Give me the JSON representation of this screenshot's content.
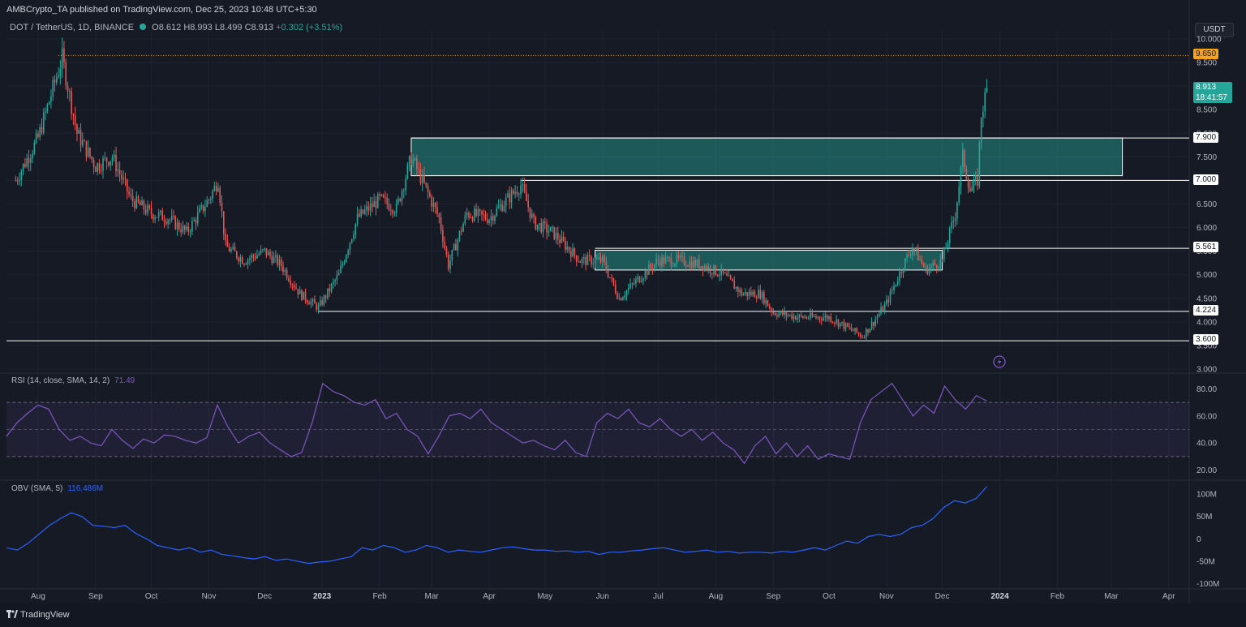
{
  "header": {
    "published_text": "AMBCrypto_TA published on TradingView.com, Dec 25, 2023 10:48 UTC+5:30"
  },
  "legend": {
    "symbol": "DOT / TetherUS, 1D, BINANCE",
    "open": "O8.612",
    "high": "H8.993",
    "low": "L8.499",
    "close": "C8.913",
    "change": "+0.302 (+3.51%)"
  },
  "currency_label": "USDT",
  "price_tags": {
    "top_level": "9.650",
    "current_price": "8.913",
    "countdown": "18:41:57",
    "l790": "7.900",
    "l700": "7.000",
    "l5561": "5.561",
    "l4224": "4.224",
    "l360": "3.600"
  },
  "rsi_legend": {
    "label": "RSI (14, close, SMA, 14, 2)",
    "value": "71.49"
  },
  "obv_legend": {
    "label": "OBV (SMA, 5)",
    "value": "116.486M"
  },
  "footer": {
    "brand": "TradingView"
  },
  "colors": {
    "background": "#161a25",
    "up": "#26a69a",
    "down": "#ef5350",
    "zone": "#26a69a",
    "rsi": "#7e57c2",
    "obv": "#2962ff",
    "level_line": "#ffffff",
    "top_tag": "#f7a21b"
  },
  "chart_data": [
    {
      "type": "candlestick",
      "title": "DOT / TetherUS, 1D, BINANCE",
      "ylim": [
        3.0,
        10.0
      ],
      "yticks": [
        "10.000",
        "9.500",
        "9.000",
        "8.500",
        "8.000",
        "7.500",
        "7.000",
        "6.500",
        "6.000",
        "5.500",
        "5.000",
        "4.500",
        "4.000",
        "3.500",
        "3.000"
      ],
      "xticks": [
        "Aug",
        "Sep",
        "Oct",
        "Nov",
        "Dec",
        "2023",
        "Feb",
        "Mar",
        "Apr",
        "May",
        "Jun",
        "Jul",
        "Aug",
        "Sep",
        "Oct",
        "Nov",
        "Dec",
        "2024",
        "Feb",
        "Mar",
        "Apr"
      ],
      "approx_close_path": [
        [
          "2022-07-20",
          7.0
        ],
        [
          "2022-08-01",
          7.9
        ],
        [
          "2022-08-14",
          9.6
        ],
        [
          "2022-08-22",
          8.0
        ],
        [
          "2022-09-01",
          7.3
        ],
        [
          "2022-09-10",
          7.5
        ],
        [
          "2022-09-20",
          6.6
        ],
        [
          "2022-10-01",
          6.3
        ],
        [
          "2022-10-10",
          6.2
        ],
        [
          "2022-10-20",
          5.9
        ],
        [
          "2022-11-01",
          6.6
        ],
        [
          "2022-11-06",
          7.0
        ],
        [
          "2022-11-10",
          5.6
        ],
        [
          "2022-11-20",
          5.3
        ],
        [
          "2022-12-01",
          5.5
        ],
        [
          "2022-12-10",
          5.2
        ],
        [
          "2022-12-20",
          4.6
        ],
        [
          "2022-12-30",
          4.3
        ],
        [
          "2023-01-10",
          5.0
        ],
        [
          "2023-01-20",
          6.2
        ],
        [
          "2023-02-01",
          6.6
        ],
        [
          "2023-02-10",
          6.4
        ],
        [
          "2023-02-18",
          7.5
        ],
        [
          "2023-02-25",
          6.9
        ],
        [
          "2023-03-05",
          6.2
        ],
        [
          "2023-03-10",
          5.2
        ],
        [
          "2023-03-20",
          6.3
        ],
        [
          "2023-04-01",
          6.2
        ],
        [
          "2023-04-18",
          6.9
        ],
        [
          "2023-04-25",
          6.1
        ],
        [
          "2023-05-05",
          5.9
        ],
        [
          "2023-05-20",
          5.3
        ],
        [
          "2023-06-01",
          5.3
        ],
        [
          "2023-06-10",
          4.5
        ],
        [
          "2023-06-20",
          4.9
        ],
        [
          "2023-07-01",
          5.3
        ],
        [
          "2023-07-13",
          5.3
        ],
        [
          "2023-07-25",
          5.2
        ],
        [
          "2023-08-05",
          5.0
        ],
        [
          "2023-08-15",
          4.6
        ],
        [
          "2023-08-25",
          4.6
        ],
        [
          "2023-09-01",
          4.2
        ],
        [
          "2023-09-15",
          4.1
        ],
        [
          "2023-09-25",
          4.1
        ],
        [
          "2023-10-01",
          4.1
        ],
        [
          "2023-10-10",
          3.9
        ],
        [
          "2023-10-19",
          3.7
        ],
        [
          "2023-10-25",
          4.0
        ],
        [
          "2023-11-01",
          4.4
        ],
        [
          "2023-11-10",
          5.2
        ],
        [
          "2023-11-15",
          5.6
        ],
        [
          "2023-11-22",
          5.1
        ],
        [
          "2023-12-01",
          5.3
        ],
        [
          "2023-12-08",
          6.3
        ],
        [
          "2023-12-12",
          7.5
        ],
        [
          "2023-12-16",
          6.8
        ],
        [
          "2023-12-20",
          7.0
        ],
        [
          "2023-12-22",
          8.4
        ],
        [
          "2023-12-25",
          8.913
        ]
      ],
      "levels": [
        9.65,
        7.9,
        7.0,
        5.561,
        4.224,
        3.6
      ],
      "zones": [
        {
          "from": "2023-02-18",
          "to": "2024-03-07",
          "low": 7.1,
          "high": 7.9
        },
        {
          "from": "2023-05-28",
          "to": "2023-12-01",
          "low": 5.1,
          "high": 5.52
        }
      ]
    },
    {
      "type": "line",
      "title": "RSI (14, close, SMA, 14, 2)",
      "ylim": [
        15,
        88
      ],
      "yticks": [
        "80.00",
        "60.00",
        "40.00",
        "20.00"
      ],
      "bands": [
        70,
        50,
        30
      ],
      "series": [
        {
          "name": "RSI",
          "values": [
            45,
            55,
            62,
            68,
            65,
            50,
            42,
            45,
            40,
            38,
            50,
            42,
            36,
            43,
            40,
            46,
            45,
            42,
            40,
            44,
            68,
            52,
            40,
            45,
            48,
            40,
            35,
            30,
            33,
            55,
            84,
            78,
            75,
            70,
            68,
            72,
            58,
            62,
            50,
            45,
            32,
            45,
            60,
            62,
            58,
            65,
            55,
            50,
            45,
            40,
            42,
            38,
            35,
            42,
            33,
            30,
            55,
            62,
            58,
            65,
            55,
            52,
            58,
            50,
            45,
            50,
            42,
            48,
            40,
            35,
            25,
            38,
            45,
            32,
            40,
            30,
            38,
            28,
            32,
            30,
            28,
            55,
            72,
            78,
            84,
            72,
            60,
            68,
            62,
            82,
            72,
            65,
            75,
            71
          ]
        }
      ]
    },
    {
      "type": "line",
      "title": "OBV (SMA, 5)",
      "ylim": [
        -110,
        120
      ],
      "yticks": [
        "100M",
        "50M",
        "0",
        "-50M",
        "-100M"
      ],
      "series": [
        {
          "name": "OBV",
          "values": [
            -20,
            -25,
            -10,
            10,
            30,
            45,
            58,
            50,
            30,
            28,
            25,
            30,
            12,
            0,
            -15,
            -20,
            -25,
            -20,
            -30,
            -25,
            -35,
            -38,
            -42,
            -45,
            -40,
            -48,
            -45,
            -50,
            -55,
            -52,
            -50,
            -45,
            -40,
            -20,
            -25,
            -15,
            -20,
            -30,
            -25,
            -15,
            -20,
            -30,
            -25,
            -28,
            -30,
            -25,
            -20,
            -18,
            -22,
            -25,
            -25,
            -28,
            -27,
            -30,
            -28,
            -35,
            -30,
            -30,
            -27,
            -25,
            -22,
            -20,
            -25,
            -30,
            -28,
            -25,
            -30,
            -28,
            -32,
            -30,
            -30,
            -32,
            -28,
            -30,
            -25,
            -20,
            -25,
            -15,
            -5,
            -10,
            5,
            10,
            5,
            10,
            25,
            30,
            45,
            70,
            85,
            80,
            90,
            116.486
          ]
        }
      ]
    }
  ]
}
